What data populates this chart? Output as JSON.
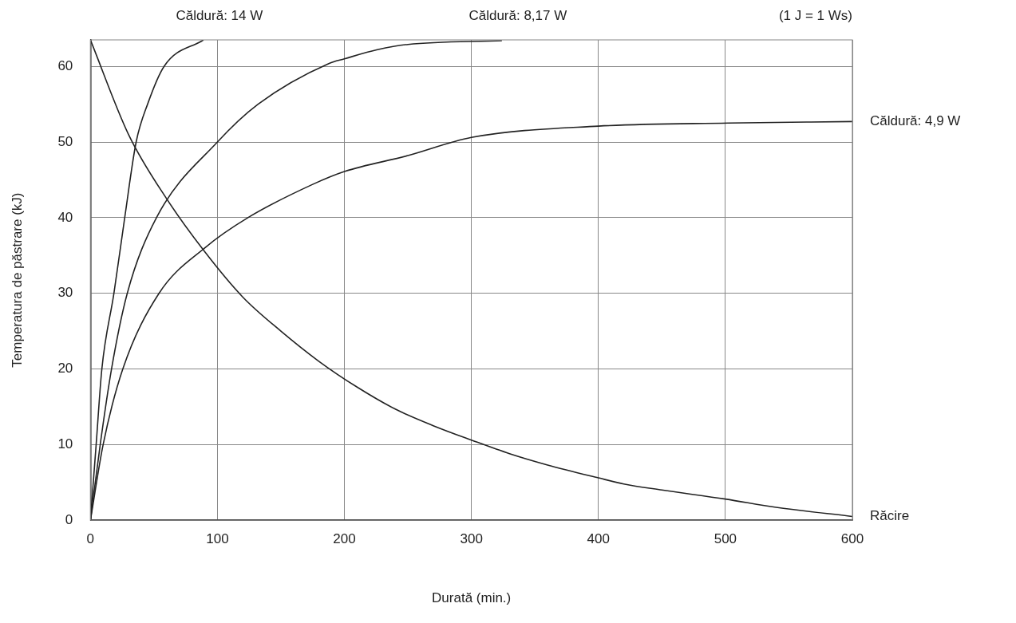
{
  "chart_data": {
    "type": "line",
    "xlabel": "Durată (min.)",
    "ylabel": "Temperatura de păstrare (kJ)",
    "annotations": [
      "(1 J = 1 Ws)"
    ],
    "xlim": [
      0,
      600
    ],
    "ylim": [
      0,
      63.5
    ],
    "xticks": [
      0,
      100,
      200,
      300,
      400,
      500,
      600
    ],
    "yticks": [
      0,
      10,
      20,
      30,
      40,
      50,
      60
    ],
    "grid": true,
    "legend": false,
    "marker": "none",
    "line_style": "solid",
    "series": [
      {
        "name": "Căldură: 14 W",
        "color": "#222222",
        "x": [
          0,
          4.5,
          9,
          18.5,
          27,
          36,
          45,
          58,
          89
        ],
        "values": [
          0,
          10,
          20,
          30,
          40,
          50,
          55,
          60,
          63.5
        ]
      },
      {
        "name": "Căldură: 8,17 W",
        "color": "#222222",
        "x": [
          0,
          7.7,
          16.6,
          29,
          52,
          100,
          132,
          188,
          200,
          226,
          250,
          324
        ],
        "values": [
          0,
          10,
          20,
          30,
          40,
          50,
          55,
          60.4,
          61,
          62.2,
          62.9,
          63.4
        ]
      },
      {
        "name": "Căldură: 4,9 W",
        "color": "#222222",
        "x": [
          0,
          10,
          25.5,
          54,
          90,
          124,
          175,
          200,
          250,
          300,
          400,
          502,
          600
        ],
        "values": [
          0,
          10,
          20,
          30,
          36,
          40,
          44.4,
          46.1,
          48.2,
          50.6,
          52.1,
          52.5,
          52.7
        ]
      },
      {
        "name": "Răcire",
        "color": "#222222",
        "x": [
          0,
          30,
          60,
          90,
          120,
          150,
          180,
          210,
          240,
          270,
          300,
          330,
          360,
          400,
          420,
          450,
          500,
          540,
          600
        ],
        "values": [
          63.5,
          51,
          42.5,
          35.5,
          29.5,
          25,
          21,
          17.6,
          14.7,
          12.5,
          10.6,
          8.8,
          7.3,
          5.6,
          4.8,
          4,
          2.8,
          1.7,
          0.5
        ]
      }
    ]
  }
}
